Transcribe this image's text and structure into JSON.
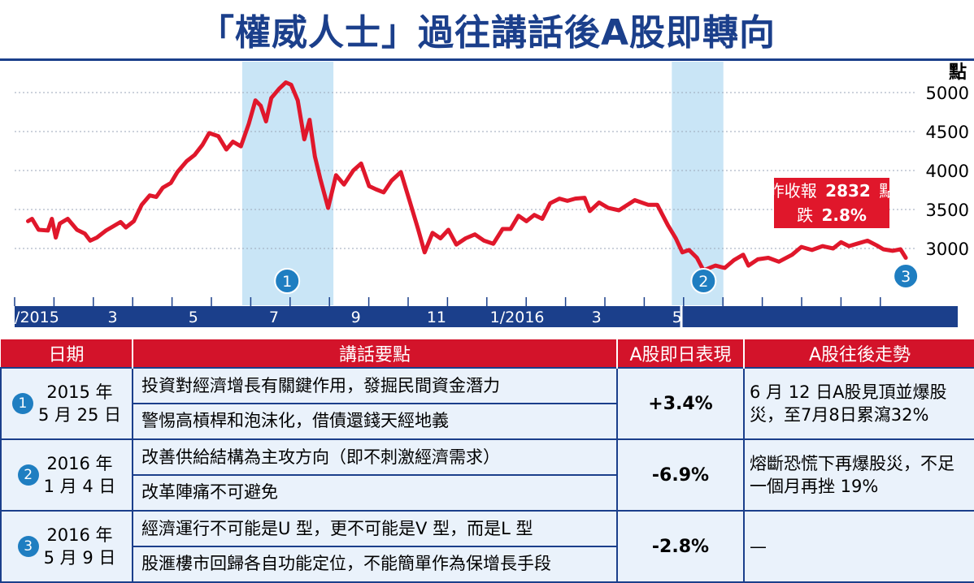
{
  "title": "「權威人士」過往講話後A股即轉向",
  "chart_data": {
    "type": "line",
    "y_unit": "點",
    "ylim": [
      2300,
      5300
    ],
    "yticks": [
      3000,
      3500,
      4000,
      4500,
      5000
    ],
    "x_labels": [
      "1/2015",
      "3",
      "5",
      "7",
      "9",
      "11",
      "1/2016",
      "3",
      "5"
    ],
    "series": [
      {
        "points": [
          [
            "2015-01-05",
            3350
          ],
          [
            "2015-01-08",
            3380
          ],
          [
            "2015-01-13",
            3240
          ],
          [
            "2015-01-20",
            3230
          ],
          [
            "2015-01-23",
            3380
          ],
          [
            "2015-01-26",
            3140
          ],
          [
            "2015-01-29",
            3320
          ],
          [
            "2015-02-04",
            3380
          ],
          [
            "2015-02-11",
            3240
          ],
          [
            "2015-02-17",
            3190
          ],
          [
            "2015-02-21",
            3100
          ],
          [
            "2015-02-26",
            3140
          ],
          [
            "2015-03-05",
            3230
          ],
          [
            "2015-03-10",
            3280
          ],
          [
            "2015-03-16",
            3340
          ],
          [
            "2015-03-20",
            3270
          ],
          [
            "2015-03-26",
            3350
          ],
          [
            "2015-04-01",
            3560
          ],
          [
            "2015-04-07",
            3680
          ],
          [
            "2015-04-12",
            3660
          ],
          [
            "2015-04-17",
            3780
          ],
          [
            "2015-04-23",
            3840
          ],
          [
            "2015-04-28",
            3980
          ],
          [
            "2015-05-05",
            4120
          ],
          [
            "2015-05-11",
            4200
          ],
          [
            "2015-05-17",
            4330
          ],
          [
            "2015-05-22",
            4480
          ],
          [
            "2015-05-29",
            4440
          ],
          [
            "2015-06-04",
            4270
          ],
          [
            "2015-06-09",
            4370
          ],
          [
            "2015-06-15",
            4310
          ],
          [
            "2015-06-21",
            4600
          ],
          [
            "2015-06-26",
            4900
          ],
          [
            "2015-06-30",
            4830
          ],
          [
            "2015-07-04",
            4630
          ],
          [
            "2015-07-08",
            4930
          ],
          [
            "2015-07-14",
            5050
          ],
          [
            "2015-07-19",
            5130
          ],
          [
            "2015-07-23",
            5100
          ],
          [
            "2015-07-28",
            4900
          ],
          [
            "2015-08-02",
            4400
          ],
          [
            "2015-08-06",
            4650
          ],
          [
            "2015-08-10",
            4180
          ],
          [
            "2015-08-14",
            3900
          ],
          [
            "2015-08-20",
            3520
          ],
          [
            "2015-08-26",
            3940
          ],
          [
            "2015-09-01",
            3820
          ],
          [
            "2015-09-08",
            4000
          ],
          [
            "2015-09-14",
            4090
          ],
          [
            "2015-09-20",
            3800
          ],
          [
            "2015-09-25",
            3760
          ],
          [
            "2015-10-01",
            3720
          ],
          [
            "2015-10-07",
            3870
          ],
          [
            "2015-10-14",
            3980
          ],
          [
            "2015-10-21",
            3590
          ],
          [
            "2015-10-27",
            3250
          ],
          [
            "2015-11-01",
            2950
          ],
          [
            "2015-11-07",
            3200
          ],
          [
            "2015-11-13",
            3130
          ],
          [
            "2015-11-19",
            3240
          ],
          [
            "2015-11-25",
            3050
          ],
          [
            "2015-12-02",
            3130
          ],
          [
            "2015-12-09",
            3180
          ],
          [
            "2015-12-16",
            3100
          ],
          [
            "2015-12-23",
            3060
          ],
          [
            "2015-12-30",
            3250
          ],
          [
            "2016-01-05",
            3250
          ],
          [
            "2016-01-11",
            3420
          ],
          [
            "2016-01-17",
            3350
          ],
          [
            "2016-01-23",
            3430
          ],
          [
            "2016-01-29",
            3380
          ],
          [
            "2016-02-04",
            3580
          ],
          [
            "2016-02-11",
            3640
          ],
          [
            "2016-02-17",
            3610
          ],
          [
            "2016-02-23",
            3640
          ],
          [
            "2016-03-01",
            3650
          ],
          [
            "2016-03-05",
            3480
          ],
          [
            "2016-03-12",
            3590
          ],
          [
            "2016-03-19",
            3520
          ],
          [
            "2016-03-27",
            3490
          ],
          [
            "2016-04-08",
            3620
          ],
          [
            "2016-04-18",
            3560
          ],
          [
            "2016-04-25",
            3560
          ],
          [
            "2016-05-03",
            3300
          ],
          [
            "2016-05-09",
            3130
          ],
          [
            "2016-05-14",
            2950
          ],
          [
            "2016-05-19",
            2980
          ],
          [
            "2016-05-25",
            2880
          ],
          [
            "2016-05-30",
            2720
          ],
          [
            "2016-06-08",
            2780
          ],
          [
            "2016-06-15",
            2750
          ],
          [
            "2016-06-22",
            2850
          ],
          [
            "2016-06-29",
            2920
          ],
          [
            "2016-07-03",
            2780
          ],
          [
            "2016-07-10",
            2860
          ],
          [
            "2016-07-18",
            2880
          ],
          [
            "2016-07-26",
            2830
          ],
          [
            "2016-08-05",
            2920
          ],
          [
            "2016-08-12",
            3020
          ],
          [
            "2016-08-20",
            2980
          ],
          [
            "2016-08-28",
            3030
          ],
          [
            "2016-09-05",
            3000
          ],
          [
            "2016-09-11",
            3080
          ],
          [
            "2016-09-17",
            3030
          ],
          [
            "2016-09-23",
            3060
          ],
          [
            "2016-10-01",
            3100
          ],
          [
            "2016-10-08",
            3040
          ],
          [
            "2016-10-13",
            2990
          ],
          [
            "2016-10-20",
            2970
          ],
          [
            "2016-10-26",
            2990
          ],
          [
            "2016-10-30",
            2880
          ]
        ]
      }
    ],
    "highlight_periods": [
      {
        "label": "1",
        "start": "2015-06-16",
        "end": "2015-08-24"
      },
      {
        "label": "2",
        "start": "2016-05-06",
        "end": "2016-06-14"
      },
      {
        "label": "3",
        "start": "2016-10-30",
        "end": "2016-10-30"
      }
    ],
    "callout": {
      "line1_prefix": "昨收報",
      "line1_value": "2832",
      "line1_suffix": "點",
      "line2_prefix": "跌",
      "line2_value": "2.8%"
    }
  },
  "table": {
    "headers": [
      "日期",
      "講話要點",
      "A股即日表現",
      "A股往後走勢"
    ],
    "rows": [
      {
        "num": "1",
        "date_line1": "2015 年",
        "date_line2": "5 月 25 日",
        "points": [
          "投資對經濟增長有關鍵作用，發掘民間資金潛力",
          "警惕高槓桿和泡沫化，借債還錢天經地義"
        ],
        "change": "+3.4%",
        "trend": "6 月 12 日A股見頂並爆股災，至7月8日累瀉32%"
      },
      {
        "num": "2",
        "date_line1": "2016 年",
        "date_line2": "1 月 4 日",
        "points": [
          "改善供給結構為主攻方向（即不刺激經濟需求）",
          "改革陣痛不可避免"
        ],
        "change": "-6.9%",
        "trend": "熔斷恐慌下再爆股災，不足一個月再挫 19%"
      },
      {
        "num": "3",
        "date_line1": "2016 年",
        "date_line2": "5 月 9 日",
        "points": [
          "經濟運行不可能是U 型，更不可能是V 型，而是L 型",
          "股滙樓市回歸各自功能定位，不能簡單作為保增長手段"
        ],
        "change": "-2.8%",
        "trend": "—"
      }
    ]
  },
  "colors": {
    "brand": "#1b3f8b",
    "line": "#e0172b",
    "highlight": "#bfe0f5",
    "marker": "#1f7ec1",
    "header": "#d3132a"
  }
}
